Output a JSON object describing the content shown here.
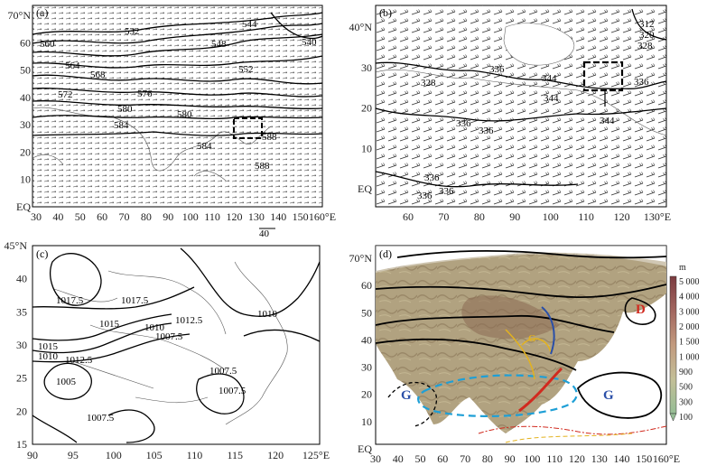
{
  "panel_a": {
    "label": "(a)",
    "y_ticks": [
      "70°N",
      "60",
      "50",
      "40",
      "30",
      "20",
      "10",
      "EQ"
    ],
    "x_ticks": [
      "30",
      "40",
      "50",
      "60",
      "70",
      "80",
      "90",
      "100",
      "110",
      "120",
      "130",
      "140",
      "150",
      "160°E"
    ],
    "vector_scale": "40",
    "contour_labels": [
      "532",
      "540",
      "544",
      "548",
      "552",
      "556",
      "560",
      "564",
      "568",
      "572",
      "576",
      "580",
      "584",
      "588"
    ]
  },
  "panel_b": {
    "label": "(b)",
    "y_ticks": [
      "40°N",
      "30",
      "20",
      "10",
      "EQ"
    ],
    "x_ticks": [
      "60",
      "70",
      "80",
      "90",
      "100",
      "110",
      "120",
      "130°E"
    ],
    "contour_labels": [
      "312",
      "320",
      "328",
      "336",
      "344"
    ]
  },
  "panel_c": {
    "label": "(c)",
    "y_ticks": [
      "45°N",
      "40",
      "35",
      "30",
      "25",
      "20",
      "15"
    ],
    "x_ticks": [
      "90",
      "95",
      "100",
      "105",
      "110",
      "115",
      "120",
      "125°E"
    ],
    "contour_labels": [
      "1017.5",
      "1017.5",
      "1015",
      "1012.5",
      "1010",
      "1007.5",
      "1010",
      "1015",
      "1010",
      "1012.5",
      "1005",
      "1007.5",
      "1007.5",
      "1007.5"
    ]
  },
  "panel_d": {
    "label": "(d)",
    "y_ticks": [
      "70°N",
      "60",
      "50",
      "40",
      "30",
      "20",
      "10",
      "EQ"
    ],
    "x_ticks": [
      "30",
      "40",
      "50",
      "60",
      "70",
      "80",
      "90",
      "100",
      "110",
      "120",
      "130",
      "140",
      "150",
      "160°E"
    ],
    "systems": [
      {
        "text": "G",
        "color": "#2a4fa8"
      },
      {
        "text": "G",
        "color": "#2a4fa8"
      },
      {
        "text": "D",
        "color": "#d12a1f"
      },
      {
        "text": "G",
        "color": "#e3b21e"
      }
    ],
    "colorbar": {
      "unit": "m",
      "levels": [
        "5 000",
        "4 000",
        "3 000",
        "2 000",
        "1 500",
        "1 000",
        "900",
        "500",
        "300",
        "100"
      ],
      "colors": [
        "#7b3b40",
        "#8e4f50",
        "#a2665f",
        "#b6806f",
        "#c29a7e",
        "#c9b08c",
        "#c3bf97",
        "#b8c49b",
        "#a8c39a",
        "#95bd95"
      ]
    }
  }
}
